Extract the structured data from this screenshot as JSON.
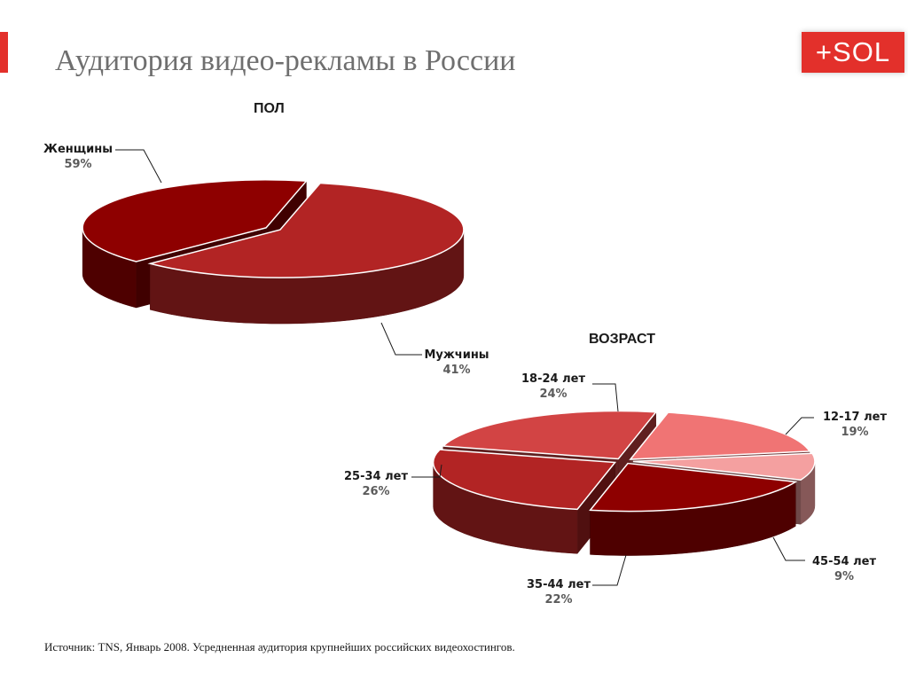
{
  "slide": {
    "title": "Аудитория видео-рекламы в России",
    "logo_text": "+SOL",
    "source": "Источник: TNS, Январь 2008. Усредненная аудитория крупнейших российских видеохостингов."
  },
  "colors": {
    "accent": "#e3302b",
    "title_text": "#6f6f6f"
  },
  "chart_data": [
    {
      "id": "gender",
      "type": "pie",
      "title": "ПОЛ",
      "slices": [
        {
          "label": "Женщины",
          "value": 59,
          "value_label": "59%",
          "color": "#b22424"
        },
        {
          "label": "Мужчины",
          "value": 41,
          "value_label": "41%",
          "color": "#8e0000"
        }
      ]
    },
    {
      "id": "age",
      "type": "pie",
      "title": "ВОЗРАСТ",
      "slices": [
        {
          "label": "18-24 лет",
          "value": 24,
          "value_label": "24%",
          "color": "#d24444"
        },
        {
          "label": "12-17 лет",
          "value": 19,
          "value_label": "19%",
          "color": "#f07474"
        },
        {
          "label": "45-54 лет",
          "value": 9,
          "value_label": "9%",
          "color": "#f4a0a0"
        },
        {
          "label": "35-44 лет",
          "value": 22,
          "value_label": "22%",
          "color": "#8e0000"
        },
        {
          "label": "25-34 лет",
          "value": 26,
          "value_label": "26%",
          "color": "#b22424"
        }
      ]
    }
  ]
}
